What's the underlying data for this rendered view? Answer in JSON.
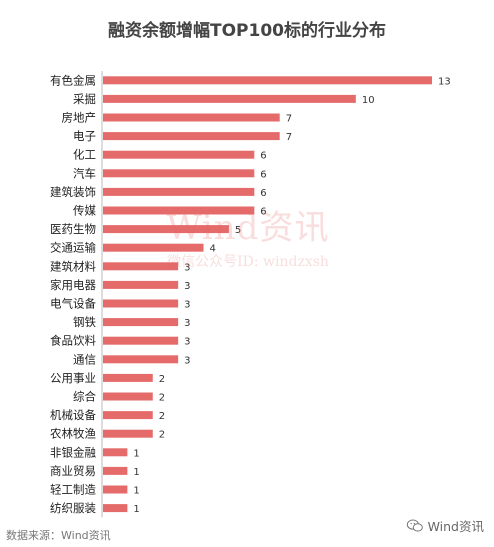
{
  "chart_data": {
    "type": "bar",
    "orientation": "horizontal",
    "title": "融资余额增幅TOP100标的行业分布",
    "categories": [
      "有色金属",
      "采掘",
      "房地产",
      "电子",
      "化工",
      "汽车",
      "建筑装饰",
      "传媒",
      "医药生物",
      "交通运输",
      "建筑材料",
      "家用电器",
      "电气设备",
      "钢铁",
      "食品饮料",
      "通信",
      "公用事业",
      "综合",
      "机械设备",
      "农林牧渔",
      "非银金融",
      "商业贸易",
      "轻工制造",
      "纺织服装"
    ],
    "values": [
      13,
      10,
      7,
      7,
      6,
      6,
      6,
      6,
      5,
      4,
      3,
      3,
      3,
      3,
      3,
      3,
      2,
      2,
      2,
      2,
      1,
      1,
      1,
      1
    ],
    "xlim": [
      0,
      13
    ],
    "grid": false,
    "legend": "none",
    "bar_color": "#e56b6b"
  },
  "watermark": {
    "main": "Wind资讯",
    "sub": "微信公众号ID: windzxsh"
  },
  "footer": {
    "source": "数据来源：Wind资讯"
  },
  "brand": {
    "label": "Wind资讯",
    "icon": "wechat-icon"
  }
}
